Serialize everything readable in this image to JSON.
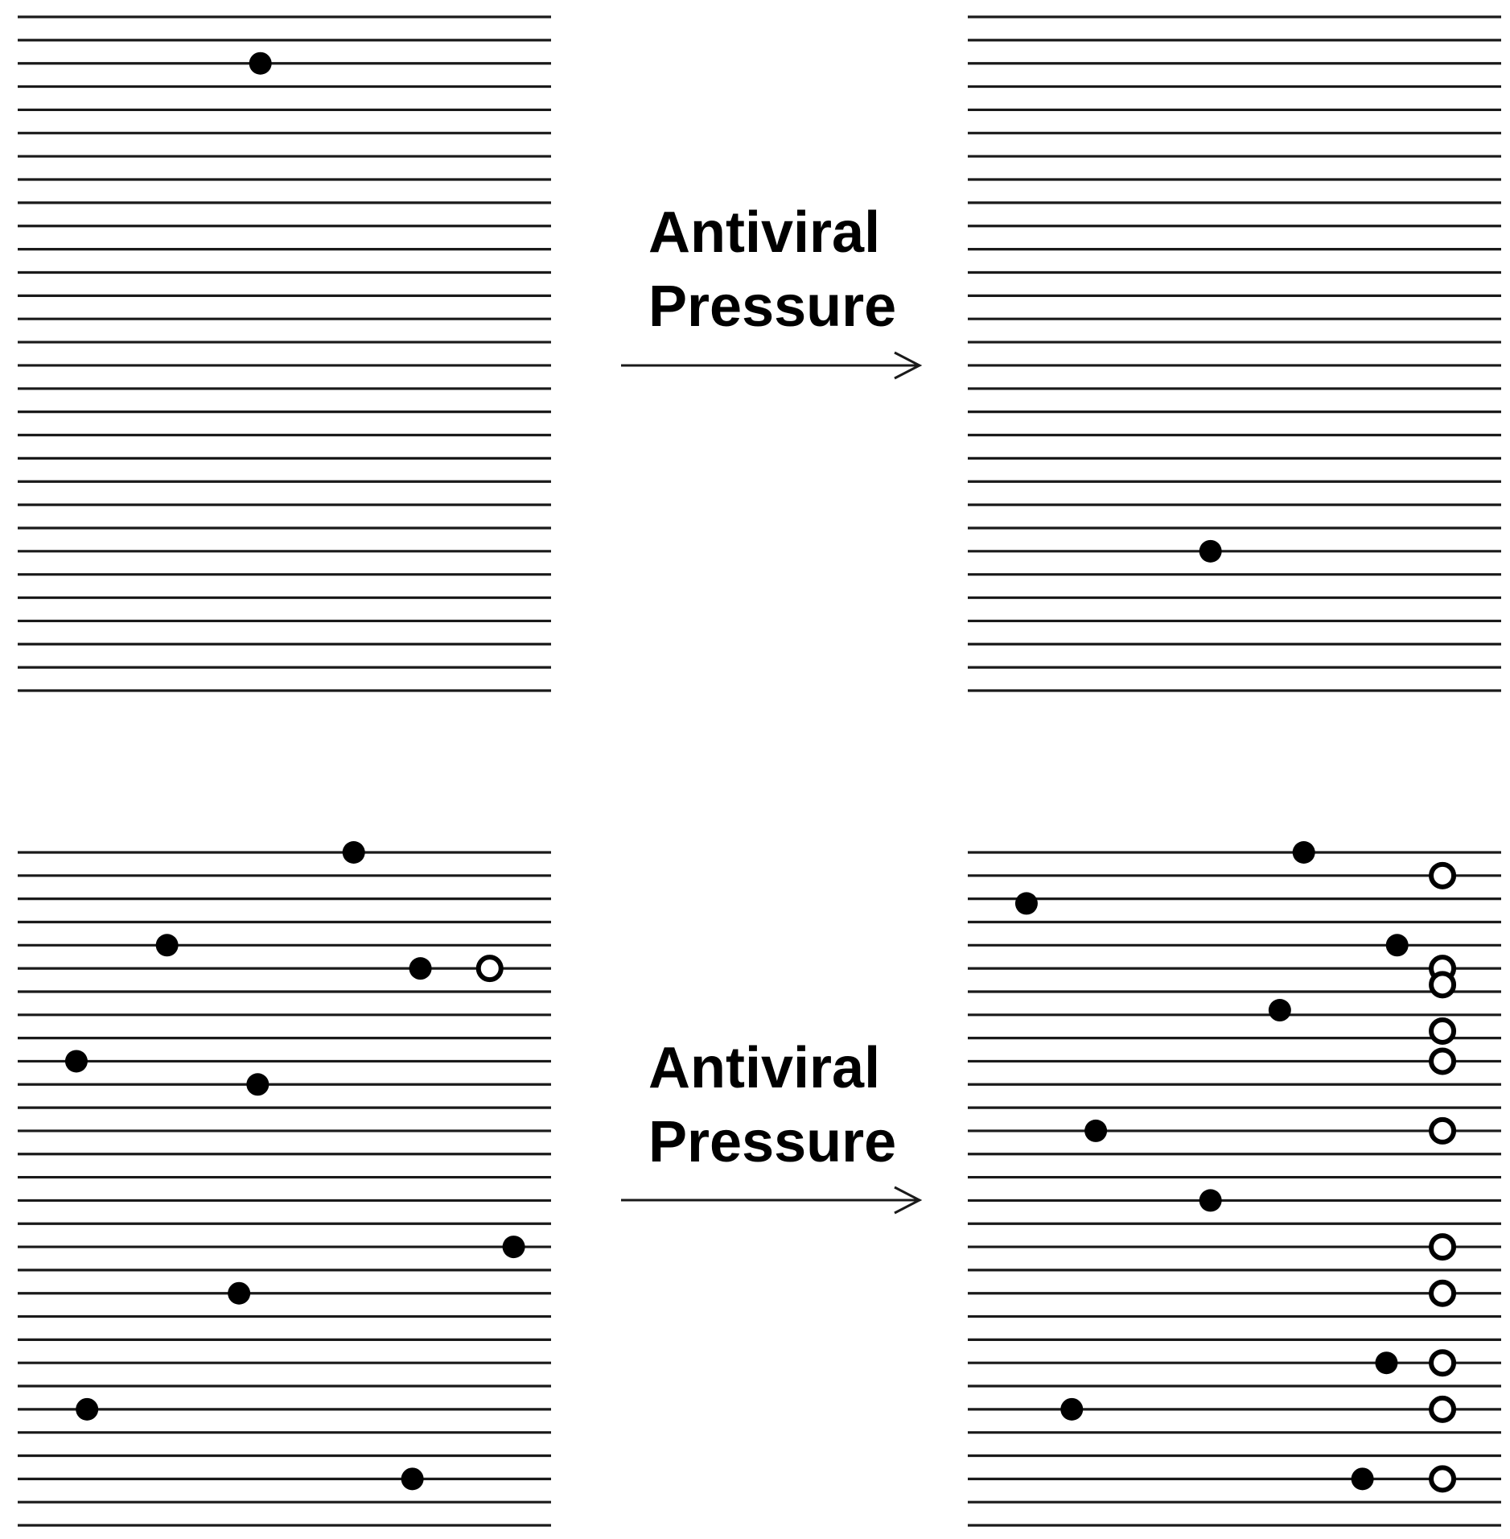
{
  "colors": {
    "line": "#1a1a1a",
    "mark": "#000000",
    "background": "#ffffff"
  },
  "rows_per_panel": 30,
  "marker_legend_meaning": {
    "filled": "filled-circle",
    "open": "open-circle"
  },
  "transitions": [
    {
      "label_line1": "Antiviral",
      "label_line2": "Pressure",
      "arrow": "right-arrow"
    },
    {
      "label_line1": "Antiviral",
      "label_line2": "Pressure",
      "arrow": "right-arrow"
    }
  ],
  "panels": [
    {
      "id": "top-left",
      "markers": [
        {
          "row": 2,
          "pos": 0.455,
          "kind": "filled"
        }
      ]
    },
    {
      "id": "top-right",
      "markers": [
        {
          "row": 23,
          "pos": 0.455,
          "kind": "filled"
        }
      ]
    },
    {
      "id": "bottom-left",
      "markers": [
        {
          "row": 0,
          "pos": 0.63,
          "kind": "filled"
        },
        {
          "row": 4,
          "pos": 0.28,
          "kind": "filled"
        },
        {
          "row": 5,
          "pos": 0.755,
          "kind": "filled"
        },
        {
          "row": 5,
          "pos": 0.885,
          "kind": "open"
        },
        {
          "row": 9,
          "pos": 0.11,
          "kind": "filled"
        },
        {
          "row": 10,
          "pos": 0.45,
          "kind": "filled"
        },
        {
          "row": 17,
          "pos": 0.93,
          "kind": "filled"
        },
        {
          "row": 19,
          "pos": 0.415,
          "kind": "filled"
        },
        {
          "row": 24,
          "pos": 0.13,
          "kind": "filled"
        },
        {
          "row": 27,
          "pos": 0.74,
          "kind": "filled"
        }
      ]
    },
    {
      "id": "bottom-right",
      "markers": [
        {
          "row": 0,
          "pos": 0.63,
          "kind": "filled"
        },
        {
          "row": 1,
          "pos": 0.89,
          "kind": "open"
        },
        {
          "row": 2.2,
          "pos": 0.11,
          "kind": "filled"
        },
        {
          "row": 4,
          "pos": 0.805,
          "kind": "filled"
        },
        {
          "row": 5,
          "pos": 0.89,
          "kind": "open"
        },
        {
          "row": 5.7,
          "pos": 0.89,
          "kind": "open"
        },
        {
          "row": 6.8,
          "pos": 0.585,
          "kind": "filled"
        },
        {
          "row": 7.7,
          "pos": 0.89,
          "kind": "open"
        },
        {
          "row": 9,
          "pos": 0.89,
          "kind": "open"
        },
        {
          "row": 12,
          "pos": 0.24,
          "kind": "filled"
        },
        {
          "row": 12,
          "pos": 0.89,
          "kind": "open"
        },
        {
          "row": 15,
          "pos": 0.455,
          "kind": "filled"
        },
        {
          "row": 17,
          "pos": 0.89,
          "kind": "open"
        },
        {
          "row": 19,
          "pos": 0.89,
          "kind": "open"
        },
        {
          "row": 22,
          "pos": 0.785,
          "kind": "filled"
        },
        {
          "row": 22,
          "pos": 0.89,
          "kind": "open"
        },
        {
          "row": 24,
          "pos": 0.195,
          "kind": "filled"
        },
        {
          "row": 24,
          "pos": 0.89,
          "kind": "open"
        },
        {
          "row": 27,
          "pos": 0.74,
          "kind": "filled"
        },
        {
          "row": 27,
          "pos": 0.89,
          "kind": "open"
        }
      ]
    }
  ]
}
